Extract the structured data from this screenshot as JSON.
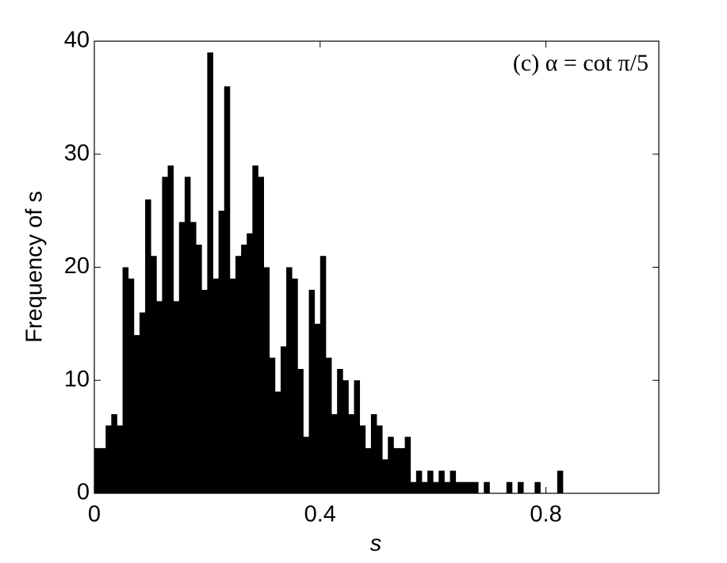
{
  "chart_data": {
    "type": "histogram",
    "annotation": "(c) α = cot π/5",
    "xlabel": "s",
    "ylabel": "Frequency of s",
    "color": "#000000",
    "bins": [
      0,
      0.01,
      0.02,
      0.03,
      0.04,
      0.05,
      0.06,
      0.07,
      0.08,
      0.09,
      0.1,
      0.11,
      0.12,
      0.13,
      0.14,
      0.15,
      0.16,
      0.17,
      0.18,
      0.19,
      0.2,
      0.21,
      0.22,
      0.23,
      0.24,
      0.25,
      0.26,
      0.27,
      0.28,
      0.29,
      0.3,
      0.31,
      0.32,
      0.33,
      0.34,
      0.35,
      0.36,
      0.37,
      0.38,
      0.39,
      0.4,
      0.41,
      0.42,
      0.43,
      0.44,
      0.45,
      0.46,
      0.47,
      0.48,
      0.49,
      0.5,
      0.51,
      0.52,
      0.53,
      0.54,
      0.55,
      0.56,
      0.57,
      0.58,
      0.59,
      0.6,
      0.61,
      0.62,
      0.63,
      0.64,
      0.65,
      0.66,
      0.67,
      0.68,
      0.69,
      0.7,
      0.71,
      0.72,
      0.73,
      0.74,
      0.75,
      0.76,
      0.77,
      0.78,
      0.79,
      0.8,
      0.81,
      0.82,
      0.83,
      0.84,
      0.85,
      0.86,
      0.87,
      0.88,
      0.89,
      0.9,
      0.91,
      0.92,
      0.93,
      0.94,
      0.95,
      0.96,
      0.97,
      0.98,
      0.99,
      1
    ],
    "values": [
      4,
      4,
      6,
      7,
      6,
      20,
      19,
      14,
      16,
      26,
      21,
      17,
      28,
      29,
      17,
      24,
      28,
      24,
      22,
      18,
      39,
      19,
      25,
      36,
      19,
      21,
      22,
      23,
      29,
      28,
      20,
      12,
      9,
      13,
      20,
      19,
      11,
      5,
      18,
      15,
      21,
      12,
      7,
      11,
      10,
      7,
      10,
      6,
      4,
      7,
      6,
      3,
      5,
      4,
      4,
      5,
      1,
      2,
      1,
      2,
      1,
      2,
      1,
      2,
      1,
      1,
      1,
      1,
      0,
      1,
      0,
      0,
      0,
      1,
      0,
      1,
      0,
      0,
      1,
      0,
      0,
      0,
      2,
      0,
      0,
      0,
      0,
      0,
      0,
      0,
      0,
      0,
      0,
      0,
      0,
      0,
      0,
      0,
      0,
      0
    ],
    "xlim": [
      0,
      1
    ],
    "ylim": [
      0,
      40
    ],
    "xticks": [
      0,
      0.4,
      0.8
    ],
    "yticks": [
      0,
      10,
      20,
      30,
      40
    ]
  }
}
